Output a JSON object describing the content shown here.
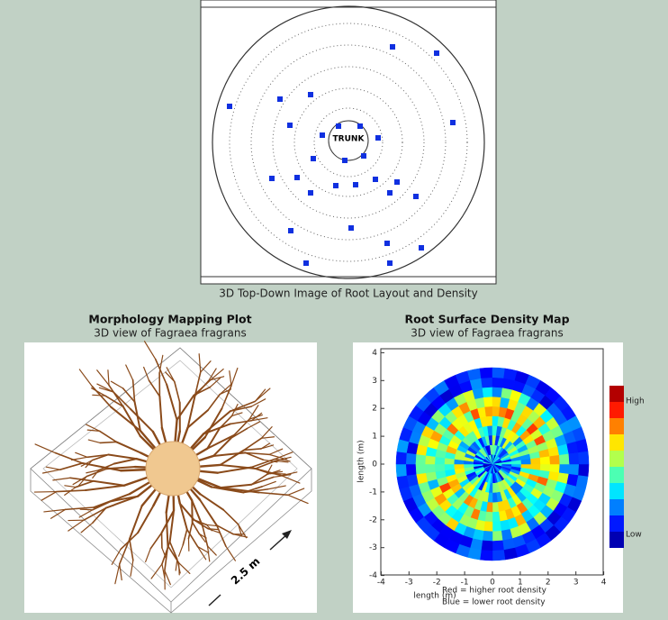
{
  "top_figure": {
    "trunk_label": "TRUNK",
    "caption": "3D Top-Down Image of Root Layout and Density"
  },
  "left_figure": {
    "title": "Morphology Mapping Plot",
    "subtitle": "3D view of Fagraea fragrans",
    "scale_label": "2.5 m"
  },
  "right_figure": {
    "title": "Root Surface Density Map",
    "subtitle": "3D view of Fagraea fragrans",
    "x_label": "length (m)",
    "y_label": "length (m)",
    "x_ticks": [
      -4,
      -3,
      -2,
      -1,
      0,
      1,
      2,
      3,
      4
    ],
    "y_ticks": [
      4,
      3,
      2,
      1,
      0,
      -1,
      -2,
      -3,
      -4
    ],
    "colorbar_high": "High",
    "colorbar_low": "Low",
    "legend_red": "Red = higher root density",
    "legend_blue": "Blue = lower root density"
  }
}
